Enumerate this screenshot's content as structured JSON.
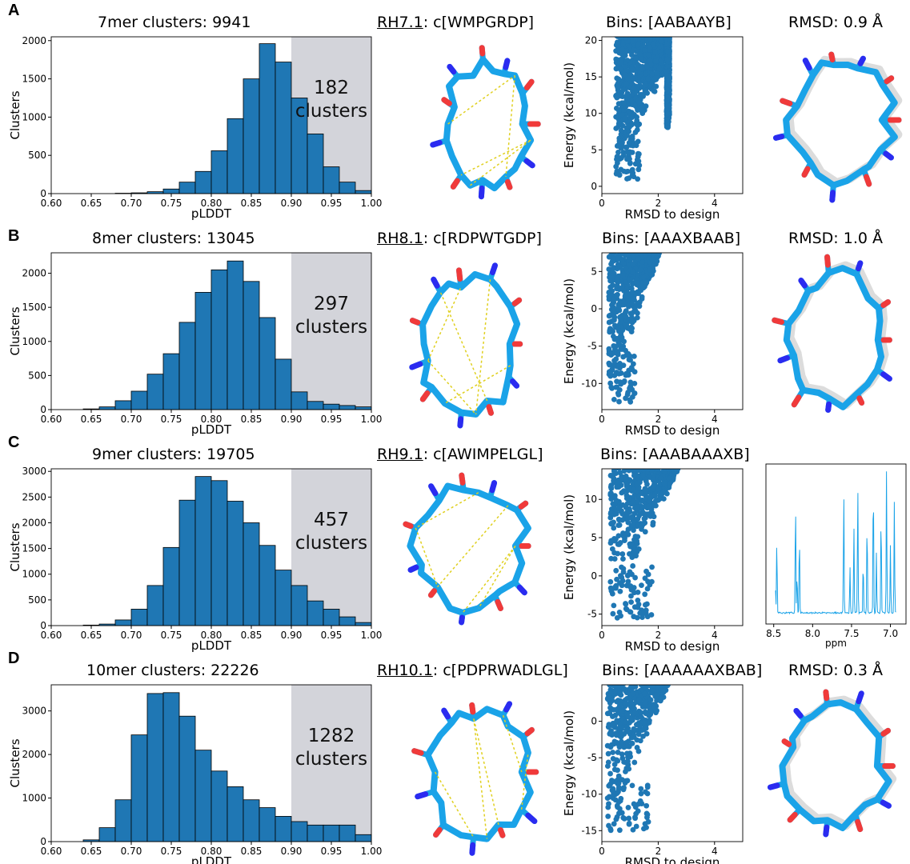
{
  "panels": [
    {
      "label": "A",
      "hist_title": "7mer clusters: 9941",
      "peptide_id": "RH7.1",
      "peptide_seq": ": c[WMPGRDP]",
      "bins_title": "Bins: [AABAAYB]",
      "right_title": "RMSD: 0.9 Å",
      "shade_count": "182",
      "shade_word": "clusters"
    },
    {
      "label": "B",
      "hist_title": "8mer clusters: 13045",
      "peptide_id": "RH8.1",
      "peptide_seq": ": c[RDPWTGDP]",
      "bins_title": "Bins: [AAAXBAAB]",
      "right_title": "RMSD: 1.0 Å",
      "shade_count": "297",
      "shade_word": "clusters"
    },
    {
      "label": "C",
      "hist_title": "9mer clusters: 19705",
      "peptide_id": "RH9.1",
      "peptide_seq": ": c[AWIMPELGL]",
      "bins_title": "Bins: [AAABAAAXB]",
      "right_title": "",
      "shade_count": "457",
      "shade_word": "clusters"
    },
    {
      "label": "D",
      "hist_title": "10mer clusters: 22226",
      "peptide_id": "RH10.1",
      "peptide_seq": ": c[PDPRWADLGL]",
      "bins_title": "Bins: [AAAAAAXBAB]",
      "right_title": "RMSD: 0.3 Å",
      "shade_count": "1282",
      "shade_word": "clusters"
    }
  ],
  "colors": {
    "bar": "#1f77b4",
    "shade": "#d3d4da",
    "stick": "#1aa3e8",
    "nitrogen": "#2b2bf0",
    "oxygen": "#f03a3a",
    "hbond": "#e0d020",
    "overlay": "#dcdcdc"
  },
  "chart_data": [
    {
      "type": "bar",
      "title": "7mer clusters: 9941",
      "xlabel": "pLDDT",
      "ylabel": "Clusters",
      "xlim": [
        0.6,
        1.0
      ],
      "ylim": [
        0,
        2050
      ],
      "xticks": [
        "0.60",
        "0.65",
        "0.70",
        "0.75",
        "0.80",
        "0.85",
        "0.90",
        "0.95",
        "1.00"
      ],
      "yticks": [
        "0",
        "500",
        "1000",
        "1500",
        "2000"
      ],
      "bin_start": 0.6,
      "bin_width": 0.02,
      "values": [
        0,
        0,
        0,
        0,
        5,
        10,
        25,
        60,
        150,
        290,
        560,
        980,
        1500,
        1960,
        1720,
        1250,
        780,
        350,
        150,
        40,
        0
      ],
      "shaded_range": [
        0.9,
        1.0
      ]
    },
    {
      "type": "bar",
      "title": "8mer clusters: 13045",
      "xlabel": "pLDDT",
      "ylabel": "Clusters",
      "xlim": [
        0.6,
        1.0
      ],
      "ylim": [
        0,
        2300
      ],
      "xticks": [
        "0.60",
        "0.65",
        "0.70",
        "0.75",
        "0.80",
        "0.85",
        "0.90",
        "0.95",
        "1.00"
      ],
      "yticks": [
        "0",
        "500",
        "1000",
        "1500",
        "2000"
      ],
      "bin_start": 0.6,
      "bin_width": 0.02,
      "values": [
        0,
        0,
        10,
        40,
        130,
        270,
        520,
        820,
        1280,
        1720,
        2050,
        2180,
        1880,
        1350,
        740,
        260,
        120,
        80,
        60,
        40,
        0
      ],
      "shaded_range": [
        0.9,
        1.0
      ]
    },
    {
      "type": "bar",
      "title": "9mer clusters: 19705",
      "xlabel": "pLDDT",
      "ylabel": "Clusters",
      "xlim": [
        0.6,
        1.0
      ],
      "ylim": [
        0,
        3050
      ],
      "xticks": [
        "0.60",
        "0.65",
        "0.70",
        "0.75",
        "0.80",
        "0.85",
        "0.90",
        "0.95",
        "1.00"
      ],
      "yticks": [
        "0",
        "500",
        "1000",
        "1500",
        "2000",
        "2500",
        "3000"
      ],
      "bin_start": 0.6,
      "bin_width": 0.02,
      "values": [
        0,
        0,
        10,
        30,
        110,
        320,
        780,
        1520,
        2440,
        2900,
        2820,
        2420,
        2000,
        1560,
        1080,
        780,
        480,
        320,
        170,
        60,
        0
      ],
      "shaded_range": [
        0.9,
        1.0
      ]
    },
    {
      "type": "bar",
      "title": "10mer clusters: 22226",
      "xlabel": "pLDDT",
      "ylabel": "Clusters",
      "xlim": [
        0.6,
        1.0
      ],
      "ylim": [
        0,
        3600
      ],
      "xticks": [
        "0.60",
        "0.65",
        "0.70",
        "0.75",
        "0.80",
        "0.85",
        "0.90",
        "0.95",
        "1.00"
      ],
      "yticks": [
        "0",
        "1000",
        "2000",
        "3000"
      ],
      "bin_start": 0.6,
      "bin_width": 0.02,
      "values": [
        0,
        0,
        40,
        320,
        960,
        2450,
        3400,
        3420,
        2880,
        2100,
        1620,
        1260,
        960,
        780,
        580,
        460,
        380,
        380,
        380,
        160,
        0
      ],
      "shaded_range": [
        0.9,
        1.0
      ]
    },
    {
      "type": "scatter",
      "title": "Bins: [AABAAYB]",
      "xlabel": "RMSD to design",
      "ylabel": "Energy (kcal/mol)",
      "xlim": [
        0,
        5
      ],
      "ylim": [
        -1,
        20.5
      ],
      "xticks": [
        "0",
        "2",
        "4"
      ],
      "yticks": [
        "0",
        "5",
        "10",
        "15",
        "20"
      ],
      "clouds": [
        {
          "x0": 0.5,
          "x1": 2.35,
          "y0": 1.0,
          "y1": 20.5,
          "slope": 8.5
        },
        {
          "x0": 2.3,
          "x1": 2.4,
          "y0": 8.0,
          "y1": 20.5,
          "slope": 0
        }
      ]
    },
    {
      "type": "scatter",
      "title": "Bins: [AAAXBAAB]",
      "xlabel": "RMSD to design",
      "ylabel": "Energy (kcal/mol)",
      "xlim": [
        0,
        5
      ],
      "ylim": [
        -13.5,
        7.5
      ],
      "xticks": [
        "0",
        "2",
        "4"
      ],
      "yticks": [
        "-10",
        "-5",
        "0",
        "5"
      ],
      "clouds": [
        {
          "x0": 0.25,
          "x1": 2.3,
          "y0": -12.5,
          "y1": 7.5,
          "slope": 11
        }
      ]
    },
    {
      "type": "scatter",
      "title": "Bins: [AAABAAAXB]",
      "xlabel": "RMSD to design",
      "ylabel": "Energy (kcal/mol)",
      "xlim": [
        0,
        5
      ],
      "ylim": [
        -6.5,
        14
      ],
      "xticks": [
        "0",
        "2",
        "4"
      ],
      "yticks": [
        "-5",
        "0",
        "5",
        "10"
      ],
      "clouds": [
        {
          "x0": 0.3,
          "x1": 3.6,
          "y0": -5.5,
          "y1": 14,
          "slope": 8
        }
      ]
    },
    {
      "type": "scatter",
      "title": "Bins: [AAAAAAXBAB]",
      "xlabel": "RMSD to design",
      "ylabel": "Energy (kcal/mol)",
      "xlim": [
        0,
        5
      ],
      "ylim": [
        -16.5,
        5
      ],
      "xticks": [
        "0",
        "2",
        "4"
      ],
      "yticks": [
        "-15",
        "-10",
        "-5",
        "0"
      ],
      "clouds": [
        {
          "x0": 0.2,
          "x1": 3.5,
          "y0": -15,
          "y1": 5,
          "slope": 9
        }
      ]
    },
    {
      "type": "line",
      "title": "",
      "xlabel": "ppm",
      "xlim": [
        8.6,
        6.8
      ],
      "xticks": [
        "8.5",
        "8.0",
        "7.5",
        "7.0"
      ],
      "peaks": [
        8.48,
        8.46,
        8.22,
        8.2,
        8.17,
        7.6,
        7.52,
        7.47,
        7.42,
        7.35,
        7.3,
        7.22,
        7.18,
        7.12,
        7.05,
        7.0,
        6.95
      ]
    }
  ]
}
